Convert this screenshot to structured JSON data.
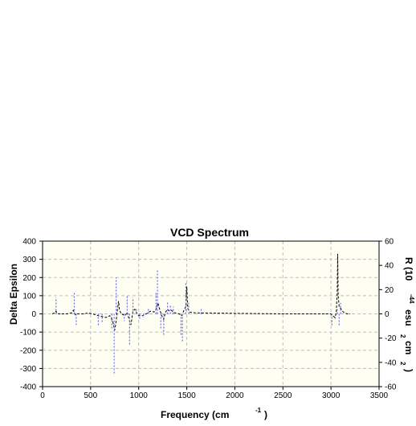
{
  "chart_data": {
    "type": "line",
    "title": "VCD Spectrum",
    "xlabel": "Frequency (cm",
    "xlabel_sup": "-1",
    "xlabel_close": ")",
    "ylabel": "Delta Epsilon",
    "y2label_main": "R (10",
    "y2label_sup1": "-44",
    "y2label_mid": "esu",
    "y2label_sup2": "2",
    "y2label_cm": "cm",
    "y2label_sup3": "2",
    "y2label_close": ")",
    "xlim": [
      0,
      3500
    ],
    "ylim": [
      -400,
      400
    ],
    "y2lim": [
      -60,
      60
    ],
    "xticks": [
      0,
      500,
      1000,
      1500,
      2000,
      2500,
      3000,
      3500
    ],
    "yticks": [
      -400,
      -300,
      -200,
      -100,
      0,
      100,
      200,
      300,
      400
    ],
    "y2ticks": [
      -60,
      -40,
      -20,
      0,
      20,
      40,
      60
    ],
    "grid": true,
    "colors": {
      "plot_bg": "#fefef2",
      "grid": "#bdbdbd",
      "spectrum": "#000000",
      "sticks": "#6a6af0"
    },
    "series": [
      {
        "style": "dashed-line",
        "axis": "left",
        "points": [
          [
            100,
            0
          ],
          [
            120,
            5
          ],
          [
            140,
            15
          ],
          [
            150,
            3
          ],
          [
            170,
            0
          ],
          [
            250,
            0
          ],
          [
            300,
            5
          ],
          [
            320,
            20
          ],
          [
            340,
            -5
          ],
          [
            360,
            0
          ],
          [
            420,
            0
          ],
          [
            480,
            5
          ],
          [
            520,
            0
          ],
          [
            580,
            -10
          ],
          [
            620,
            -15
          ],
          [
            660,
            -20
          ],
          [
            700,
            -10
          ],
          [
            730,
            -40
          ],
          [
            750,
            -90
          ],
          [
            760,
            -60
          ],
          [
            780,
            30
          ],
          [
            790,
            70
          ],
          [
            800,
            20
          ],
          [
            820,
            0
          ],
          [
            860,
            -10
          ],
          [
            880,
            10
          ],
          [
            900,
            -30
          ],
          [
            920,
            -60
          ],
          [
            940,
            15
          ],
          [
            960,
            25
          ],
          [
            980,
            5
          ],
          [
            1000,
            -10
          ],
          [
            1040,
            -10
          ],
          [
            1080,
            0
          ],
          [
            1120,
            15
          ],
          [
            1160,
            10
          ],
          [
            1180,
            25
          ],
          [
            1200,
            60
          ],
          [
            1215,
            30
          ],
          [
            1240,
            -10
          ],
          [
            1260,
            -30
          ],
          [
            1280,
            10
          ],
          [
            1300,
            25
          ],
          [
            1320,
            15
          ],
          [
            1340,
            20
          ],
          [
            1360,
            10
          ],
          [
            1380,
            5
          ],
          [
            1420,
            0
          ],
          [
            1450,
            -10
          ],
          [
            1470,
            20
          ],
          [
            1490,
            40
          ],
          [
            1500,
            150
          ],
          [
            1510,
            30
          ],
          [
            1530,
            10
          ],
          [
            1600,
            5
          ],
          [
            1650,
            5
          ],
          [
            1700,
            5
          ],
          [
            2500,
            0
          ],
          [
            3000,
            0
          ],
          [
            3020,
            -10
          ],
          [
            3040,
            -20
          ],
          [
            3055,
            5
          ],
          [
            3065,
            120
          ],
          [
            3070,
            330
          ],
          [
            3075,
            100
          ],
          [
            3085,
            40
          ],
          [
            3100,
            30
          ],
          [
            3120,
            15
          ],
          [
            3140,
            5
          ],
          [
            3170,
            0
          ],
          [
            3200,
            0
          ]
        ]
      },
      {
        "style": "dashed-sticks",
        "axis": "left",
        "sticks": [
          [
            140,
            90
          ],
          [
            330,
            120
          ],
          [
            350,
            -60
          ],
          [
            580,
            -70
          ],
          [
            620,
            -50
          ],
          [
            720,
            -80
          ],
          [
            745,
            -330
          ],
          [
            765,
            200
          ],
          [
            850,
            -40
          ],
          [
            880,
            100
          ],
          [
            905,
            -170
          ],
          [
            940,
            90
          ],
          [
            975,
            30
          ],
          [
            1010,
            -30
          ],
          [
            1050,
            -20
          ],
          [
            1100,
            30
          ],
          [
            1180,
            120
          ],
          [
            1195,
            240
          ],
          [
            1230,
            -80
          ],
          [
            1260,
            -120
          ],
          [
            1300,
            70
          ],
          [
            1330,
            50
          ],
          [
            1360,
            40
          ],
          [
            1440,
            -120
          ],
          [
            1455,
            -150
          ],
          [
            1490,
            170
          ],
          [
            1520,
            60
          ],
          [
            1650,
            30
          ],
          [
            3010,
            -70
          ],
          [
            3045,
            -30
          ],
          [
            3065,
            30
          ],
          [
            3085,
            -70
          ],
          [
            3100,
            60
          ]
        ]
      }
    ]
  }
}
